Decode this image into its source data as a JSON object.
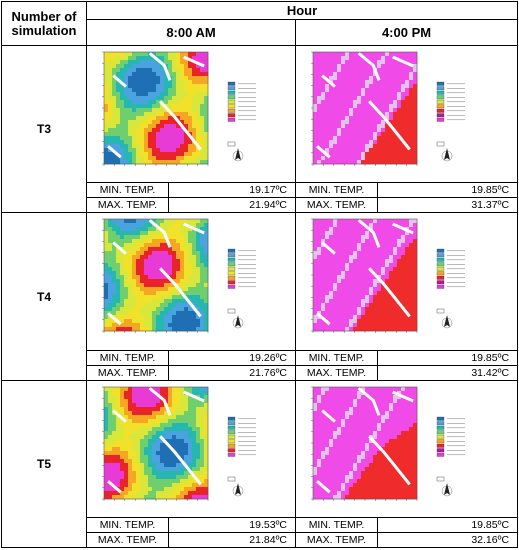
{
  "header": {
    "sim_label": "Number of simulation",
    "hour_label": "Hour",
    "col_morning": "8:00 AM",
    "col_afternoon": "4:00 PM"
  },
  "rows": [
    {
      "name": "T3",
      "am": {
        "min_label": "MIN. TEMP.",
        "min": "19.17ºC",
        "max_label": "MAX. TEMP.",
        "max": "21.94ºC"
      },
      "pm": {
        "min_label": "MIN. TEMP.",
        "min": "19.85ºC",
        "max_label": "MAX. TEMP.",
        "max": "31.37ºC"
      }
    },
    {
      "name": "T4",
      "am": {
        "min_label": "MIN. TEMP.",
        "min": "19.26ºC",
        "max_label": "MAX. TEMP.",
        "max": "21.76ºC"
      },
      "pm": {
        "min_label": "MIN. TEMP.",
        "min": "19.85ºC",
        "max_label": "MAX. TEMP.",
        "max": "31.42ºC"
      }
    },
    {
      "name": "T5",
      "am": {
        "min_label": "MIN. TEMP.",
        "min": "19.53ºC",
        "max_label": "MAX. TEMP.",
        "max": "21.84ºC"
      },
      "pm": {
        "min_label": "MIN. TEMP.",
        "min": "19.85ºC",
        "max_label": "MAX. TEMP.",
        "max": "32.16ºC"
      }
    }
  ],
  "palette": {
    "morning": [
      "#1f6fb5",
      "#4aa3df",
      "#26b8b0",
      "#6fcf6f",
      "#d9e63a",
      "#f2e12b",
      "#f5a623",
      "#e8232a",
      "#e83bd6"
    ],
    "afternoon": [
      "#f04ae8",
      "#e2c4ea",
      "#ef2b2b"
    ],
    "building": "#ffffff"
  }
}
